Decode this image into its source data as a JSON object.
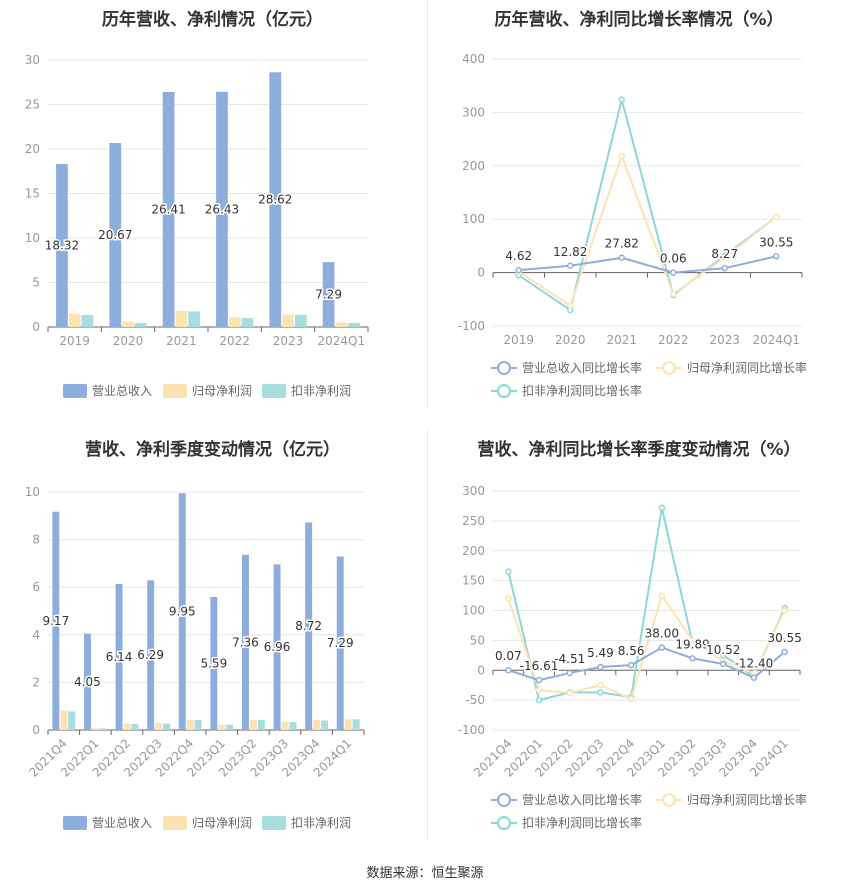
{
  "source_label": "数据来源：恒生聚源",
  "colors": {
    "revenue": "#8DAEDC",
    "parent_net_profit": "#FBE3B2",
    "deducted_net_profit": "#A8DDE0",
    "revenue_line": "#8DAEDC",
    "parent_line": "#FBE3B2",
    "deducted_line": "#8DD6DA"
  },
  "chart_data": [
    {
      "id": "annual-amounts",
      "type": "bar",
      "title": "历年营收、净利情况（亿元）",
      "categories": [
        "2019",
        "2020",
        "2021",
        "2022",
        "2023",
        "2024Q1"
      ],
      "ylim": [
        0,
        30
      ],
      "yticks": [
        0,
        5,
        10,
        15,
        20,
        25,
        30
      ],
      "grid": true,
      "legend": "bottom",
      "series": [
        {
          "name": "营业总收入",
          "values": [
            18.32,
            20.67,
            26.41,
            26.43,
            28.62,
            7.29
          ],
          "labels": [
            "18.32",
            "20.67",
            "26.41",
            "26.43",
            "28.62",
            "7.29"
          ]
        },
        {
          "name": "归母净利润",
          "values": [
            1.5,
            0.6,
            1.8,
            1.1,
            1.4,
            0.5
          ]
        },
        {
          "name": "扣非净利润",
          "values": [
            1.35,
            0.45,
            1.75,
            1.0,
            1.35,
            0.45
          ]
        }
      ]
    },
    {
      "id": "annual-growth",
      "type": "line",
      "title": "历年营收、净利同比增长率情况（%）",
      "categories": [
        "2019",
        "2020",
        "2021",
        "2022",
        "2023",
        "2024Q1"
      ],
      "ylim": [
        -100,
        400
      ],
      "yticks": [
        -100,
        0,
        100,
        200,
        300,
        400
      ],
      "grid": true,
      "legend": "bottom",
      "series": [
        {
          "name": "营业总收入同比增长率",
          "values": [
            4.62,
            12.82,
            27.82,
            0.06,
            8.27,
            30.55
          ],
          "labels": [
            "4.62",
            "12.82",
            "27.82",
            "0.06",
            "8.27",
            "30.55"
          ]
        },
        {
          "name": "归母净利润同比增长率",
          "values": [
            2,
            -62,
            218,
            -40,
            28,
            104
          ]
        },
        {
          "name": "扣非净利润同比增长率",
          "values": [
            -5,
            -70,
            324,
            -42,
            32,
            104
          ]
        }
      ]
    },
    {
      "id": "quarterly-amounts",
      "type": "bar",
      "title": "营收、净利季度变动情况（亿元）",
      "categories": [
        "2021Q4",
        "2022Q1",
        "2022Q2",
        "2022Q3",
        "2022Q4",
        "2023Q1",
        "2023Q2",
        "2023Q3",
        "2023Q4",
        "2024Q1"
      ],
      "ylim": [
        0,
        10
      ],
      "yticks": [
        0,
        2,
        4,
        6,
        8,
        10
      ],
      "grid": true,
      "legend": "bottom",
      "series": [
        {
          "name": "营业总收入",
          "values": [
            9.17,
            4.05,
            6.14,
            6.29,
            9.95,
            5.59,
            7.36,
            6.96,
            8.72,
            7.29
          ],
          "labels": [
            "9.17",
            "4.05",
            "6.14",
            "6.29",
            "9.95",
            "5.59",
            "7.36",
            "6.96",
            "8.72",
            "7.29"
          ]
        },
        {
          "name": "归母净利润",
          "values": [
            0.82,
            0.1,
            0.28,
            0.3,
            0.42,
            0.22,
            0.42,
            0.35,
            0.42,
            0.45
          ]
        },
        {
          "name": "扣非净利润",
          "values": [
            0.78,
            0.06,
            0.26,
            0.27,
            0.42,
            0.22,
            0.42,
            0.33,
            0.4,
            0.45
          ]
        }
      ]
    },
    {
      "id": "quarterly-growth",
      "type": "line",
      "title": "营收、净利同比增长率季度变动情况（%）",
      "categories": [
        "2021Q4",
        "2022Q1",
        "2022Q2",
        "2022Q3",
        "2022Q4",
        "2023Q1",
        "2023Q2",
        "2023Q3",
        "2023Q4",
        "2024Q1"
      ],
      "ylim": [
        -100,
        300
      ],
      "yticks": [
        -100,
        -50,
        0,
        50,
        100,
        150,
        200,
        250,
        300
      ],
      "grid": true,
      "legend": "bottom",
      "series": [
        {
          "name": "营业总收入同比增长率",
          "values": [
            0.07,
            -16.61,
            -4.51,
            5.49,
            8.56,
            38.0,
            19.89,
            10.52,
            -12.4,
            30.55
          ],
          "labels": [
            "0.07",
            "-16.61",
            "-4.51",
            "5.49",
            "8.56",
            "38.00",
            "19.89",
            "10.52",
            "-12.40",
            "30.55"
          ]
        },
        {
          "name": "归母净利润同比增长率",
          "values": [
            120,
            -33,
            -38,
            -25,
            -48,
            125,
            50,
            15,
            -5,
            100
          ]
        },
        {
          "name": "扣非净利润同比增长率",
          "values": [
            165,
            -50,
            -37,
            -37,
            -45,
            272,
            45,
            25,
            -10,
            104
          ]
        }
      ]
    }
  ]
}
